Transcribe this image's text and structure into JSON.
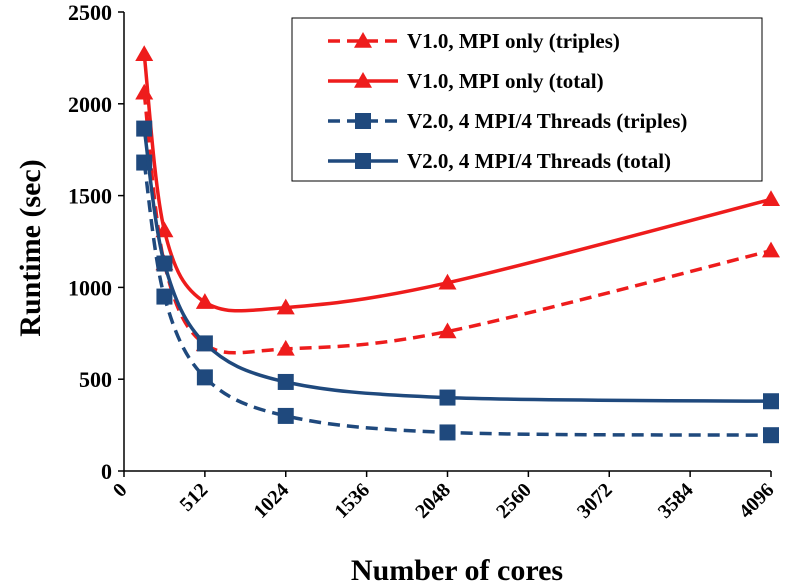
{
  "chart_data": {
    "type": "line",
    "title": "",
    "xlabel": "Number of cores",
    "ylabel": "Runtime  (sec)",
    "xlim": [
      0,
      4096
    ],
    "ylim": [
      0,
      2500
    ],
    "xticks": [
      0,
      512,
      1024,
      1536,
      2048,
      2560,
      3072,
      3584,
      4096
    ],
    "yticks": [
      0,
      500,
      1000,
      1500,
      2000,
      2500
    ],
    "grid": false,
    "legend_position": "top-right",
    "series": [
      {
        "name": "V1.0, MPI only (triples)",
        "color": "#ee1c1c",
        "dash": "dashed",
        "marker": "triangle",
        "x": [
          128,
          256,
          512,
          1024,
          2048,
          4096
        ],
        "y": [
          2060,
          1130,
          690,
          665,
          760,
          1200
        ]
      },
      {
        "name": "V1.0, MPI only (total)",
        "color": "#ee1c1c",
        "dash": "solid",
        "marker": "triangle",
        "x": [
          128,
          256,
          512,
          1024,
          2048,
          4096
        ],
        "y": [
          2270,
          1310,
          920,
          890,
          1025,
          1480
        ]
      },
      {
        "name": "V2.0, 4 MPI/4 Threads (triples)",
        "color": "#1f497d",
        "dash": "dashed",
        "marker": "square",
        "x": [
          128,
          256,
          512,
          1024,
          2048,
          4096
        ],
        "y": [
          1680,
          950,
          510,
          300,
          210,
          195
        ]
      },
      {
        "name": "V2.0, 4 MPI/4 Threads (total)",
        "color": "#1f497d",
        "dash": "solid",
        "marker": "square",
        "x": [
          128,
          256,
          512,
          1024,
          2048,
          4096
        ],
        "y": [
          1865,
          1130,
          695,
          485,
          400,
          380
        ]
      }
    ]
  }
}
